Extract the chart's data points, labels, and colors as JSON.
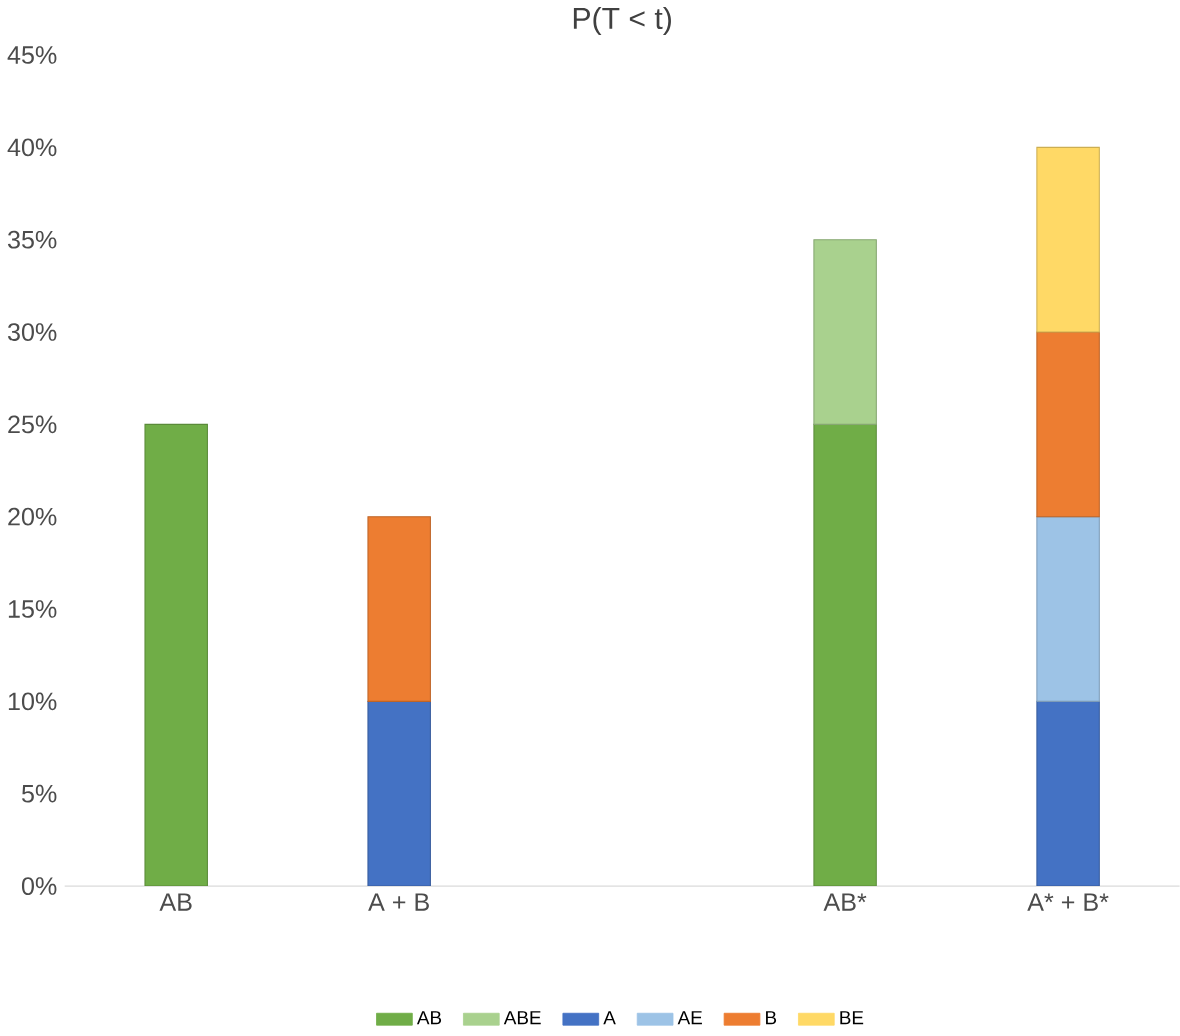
{
  "chart_data": {
    "type": "bar",
    "title": "P(T < t)",
    "stacked": true,
    "categories": [
      "AB",
      "A + B",
      null,
      "AB*",
      "A* + B*"
    ],
    "series": [
      {
        "name": "AB",
        "color": "#70ad47",
        "values": [
          25,
          null,
          null,
          25,
          null
        ]
      },
      {
        "name": "ABE",
        "color": "#a9d18e",
        "values": [
          null,
          null,
          null,
          10,
          null
        ]
      },
      {
        "name": "A",
        "color": "#4472c4",
        "values": [
          null,
          10,
          null,
          null,
          10
        ]
      },
      {
        "name": "AE",
        "color": "#9dc3e6",
        "values": [
          null,
          null,
          null,
          null,
          10
        ]
      },
      {
        "name": "B",
        "color": "#ed7d31",
        "values": [
          null,
          10,
          null,
          null,
          10
        ]
      },
      {
        "name": "BE",
        "color": "#ffd966",
        "values": [
          null,
          null,
          null,
          null,
          10
        ]
      }
    ],
    "ylim": [
      0,
      45
    ],
    "yticks": [
      {
        "value": 0,
        "label": "0%"
      },
      {
        "value": 5,
        "label": "5%"
      },
      {
        "value": 10,
        "label": "10%"
      },
      {
        "value": 15,
        "label": "15%"
      },
      {
        "value": 20,
        "label": "20%"
      },
      {
        "value": 25,
        "label": "25%"
      },
      {
        "value": 30,
        "label": "30%"
      },
      {
        "value": 35,
        "label": "35%"
      },
      {
        "value": 40,
        "label": "40%"
      },
      {
        "value": 45,
        "label": "45%"
      }
    ],
    "legend": "bottom"
  }
}
